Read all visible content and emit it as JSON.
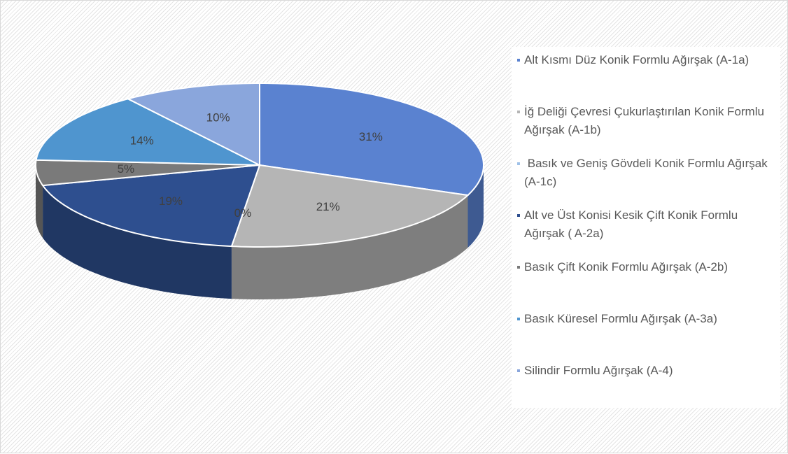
{
  "chart_data": {
    "type": "pie",
    "categories": [
      "Alt Kısmı Düz Konik Formlu Ağırşak (A-1a)",
      "İğ Deliği Çevresi Çukurlaştırılan Konik Formlu Ağırşak (A-1b)",
      " Basık ve Geniş Gövdeli Konik Formlu Ağırşak (A-1c)",
      "Alt ve Üst Konisi Kesik Çift Konik Formlu Ağırşak ( A-2a)",
      "Basık Çift Konik Formlu Ağırşak (A-2b)",
      "Basık Küresel Formlu Ağırşak (A-3a)",
      "Silindir Formlu Ağırşak (A-4)"
    ],
    "values": [
      31,
      21,
      0,
      19,
      5,
      14,
      10
    ],
    "value_labels": [
      "31%",
      "21%",
      "0%",
      "19%",
      "5%",
      "14%",
      "10%"
    ],
    "colors": [
      "#5a82d0",
      "#b5b5b5",
      "#9fc1e8",
      "#2e4f8f",
      "#7a7a7a",
      "#4f95cf",
      "#8aa6dc"
    ]
  }
}
